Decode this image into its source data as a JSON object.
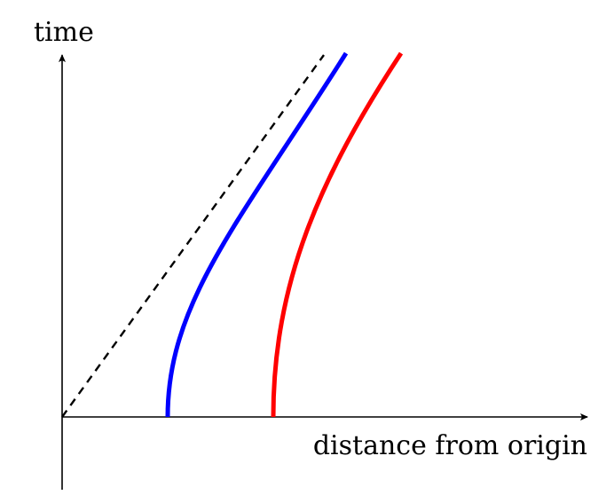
{
  "labels": {
    "y_axis": "time",
    "x_axis": "distance from origin"
  },
  "colors": {
    "axes": "#000000",
    "light_ray": "#000000",
    "worldline_inner": "#0000ff",
    "worldline_outer": "#ff0000"
  },
  "diagram": {
    "type": "spacetime-diagram",
    "light_ray": {
      "style": "dashed",
      "from_origin": true
    },
    "worldlines": [
      {
        "color_key": "worldline_inner",
        "start_distance": 1.0
      },
      {
        "color_key": "worldline_outer",
        "start_distance": 2.0
      }
    ]
  }
}
